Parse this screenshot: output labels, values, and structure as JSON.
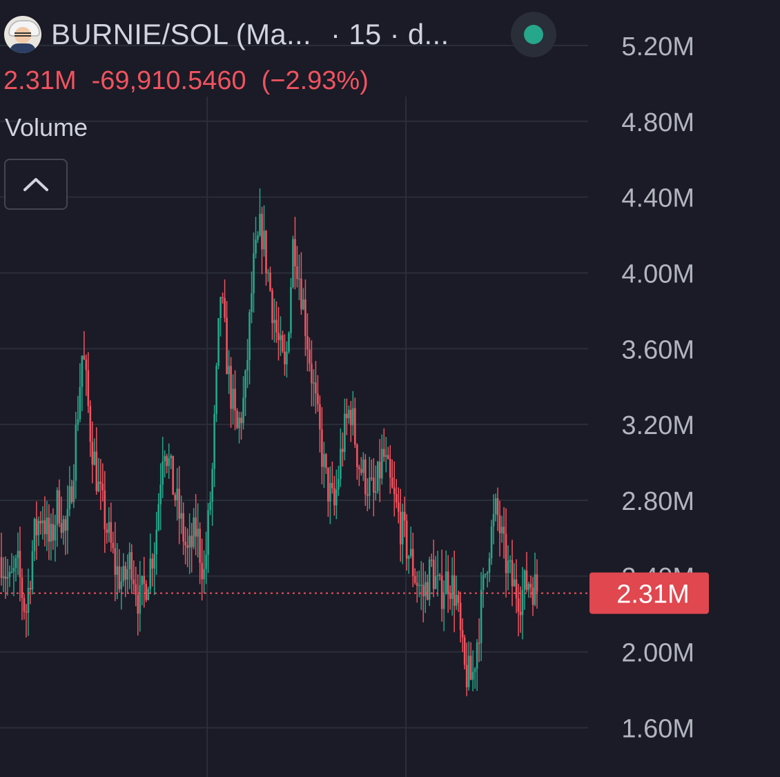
{
  "header": {
    "symbol": "BURNIE/SOL (Ma...",
    "interval": "15",
    "source": "d...",
    "status_color": "#26a68a"
  },
  "price_row": {
    "last": "2.31M",
    "change": "-69,910.5460",
    "change_pct": "(−2.93%)"
  },
  "indicators": {
    "volume_label": "Volume"
  },
  "controls": {
    "collapse_icon": "chevron-up-icon"
  },
  "colors": {
    "background": "#1a1b26",
    "grid": "#2a2e39",
    "up": "#26a68a",
    "down": "#f1535f",
    "text": "#d1d4dc"
  },
  "chart_data": {
    "type": "candlestick",
    "y_tick_labels": [
      "5.20M",
      "4.80M",
      "4.40M",
      "4.00M",
      "3.60M",
      "3.20M",
      "2.80M",
      "2.40M",
      "2.00M",
      "1.60M"
    ],
    "y_ticks": [
      5.2,
      4.8,
      4.4,
      4.0,
      3.6,
      3.2,
      2.8,
      2.4,
      2.0,
      1.6
    ],
    "ylim": [
      1.34,
      5.44
    ],
    "y_unit": "M",
    "last_price": 2.31,
    "last_price_label": "2.31M",
    "close_path": [
      [
        0,
        2.5
      ],
      [
        2,
        2.35
      ],
      [
        4,
        2.45
      ],
      [
        6,
        2.2
      ],
      [
        8,
        2.6
      ],
      [
        10,
        2.75
      ],
      [
        12,
        2.55
      ],
      [
        14,
        2.8
      ],
      [
        16,
        2.6
      ],
      [
        18,
        3.05
      ],
      [
        20,
        3.6
      ],
      [
        22,
        3.15
      ],
      [
        24,
        2.85
      ],
      [
        26,
        2.65
      ],
      [
        28,
        2.45
      ],
      [
        30,
        2.35
      ],
      [
        32,
        2.5
      ],
      [
        34,
        2.25
      ],
      [
        36,
        2.4
      ],
      [
        38,
        2.6
      ],
      [
        40,
        3.15
      ],
      [
        42,
        2.9
      ],
      [
        44,
        2.7
      ],
      [
        46,
        2.5
      ],
      [
        48,
        2.65
      ],
      [
        50,
        2.4
      ],
      [
        52,
        2.95
      ],
      [
        54,
        3.9
      ],
      [
        56,
        3.45
      ],
      [
        58,
        3.15
      ],
      [
        60,
        3.35
      ],
      [
        62,
        4.0
      ],
      [
        64,
        4.25
      ],
      [
        66,
        3.95
      ],
      [
        68,
        3.65
      ],
      [
        70,
        3.45
      ],
      [
        72,
        4.2
      ],
      [
        74,
        3.9
      ],
      [
        76,
        3.55
      ],
      [
        78,
        3.2
      ],
      [
        80,
        2.9
      ],
      [
        82,
        2.75
      ],
      [
        84,
        3.1
      ],
      [
        86,
        3.3
      ],
      [
        88,
        3.0
      ],
      [
        90,
        2.9
      ],
      [
        92,
        2.8
      ],
      [
        94,
        3.05
      ],
      [
        96,
        2.85
      ],
      [
        98,
        2.7
      ],
      [
        100,
        2.55
      ],
      [
        102,
        2.4
      ],
      [
        104,
        2.3
      ],
      [
        106,
        2.45
      ],
      [
        108,
        2.3
      ],
      [
        110,
        2.4
      ],
      [
        112,
        2.3
      ],
      [
        114,
        1.9
      ],
      [
        116,
        1.85
      ],
      [
        118,
        2.2
      ],
      [
        120,
        2.55
      ],
      [
        122,
        2.75
      ],
      [
        124,
        2.5
      ],
      [
        126,
        2.35
      ],
      [
        128,
        2.3
      ],
      [
        130,
        2.38
      ],
      [
        132,
        2.33
      ]
    ],
    "grid": true
  }
}
